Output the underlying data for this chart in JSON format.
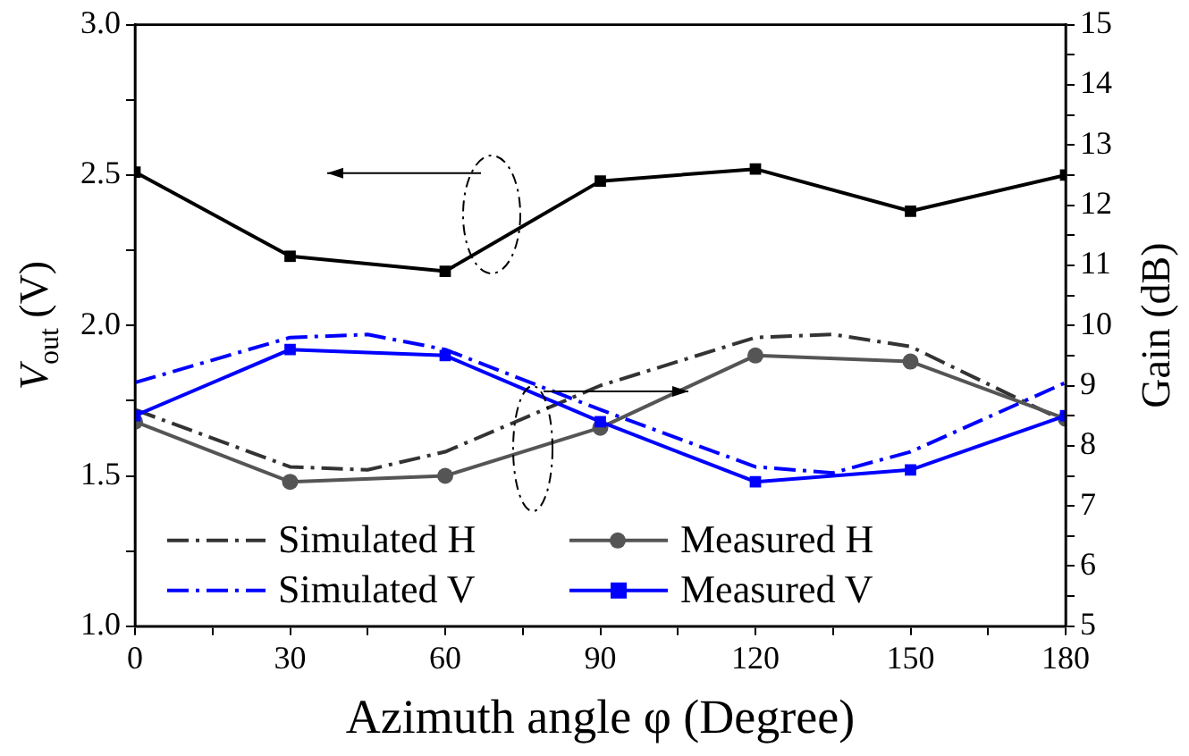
{
  "chart_data": {
    "type": "line",
    "xlabel": "Azimuth angle φ (Degree)",
    "ylabel": "V$_{out}$ (V)",
    "y2label": "Gain (dB)",
    "xlim": [
      0,
      180
    ],
    "xticks": [
      0,
      {
        "value": 15,
        "label": null
      },
      30,
      {
        "value": 45,
        "label": null
      },
      60,
      {
        "value": 75,
        "label": null
      },
      90,
      {
        "value": 105,
        "label": null
      },
      120,
      {
        "value": 135,
        "label": null
      },
      150,
      {
        "value": 165,
        "label": null
      },
      180
    ],
    "ylim": [
      1.0,
      3.0
    ],
    "yticks": [
      {
        "value": 1.0,
        "label": "1.0"
      },
      {
        "value": 1.25,
        "label": null
      },
      {
        "value": 1.5,
        "label": "1.5"
      },
      {
        "value": 1.75,
        "label": null
      },
      {
        "value": 2.0,
        "label": "2.0"
      },
      {
        "value": 2.25,
        "label": null
      },
      {
        "value": 2.5,
        "label": "2.5"
      },
      {
        "value": 2.75,
        "label": null
      },
      {
        "value": 3.0,
        "label": "3.0"
      }
    ],
    "y2lim": [
      5,
      15
    ],
    "y2ticks": [
      5,
      {
        "value": 5.5,
        "label": null
      },
      6,
      {
        "value": 6.5,
        "label": null
      },
      7,
      {
        "value": 7.5,
        "label": null
      },
      8,
      {
        "value": 8.5,
        "label": null
      },
      9,
      {
        "value": 9.5,
        "label": null
      },
      10,
      {
        "value": 10.5,
        "label": null
      },
      11,
      {
        "value": 11.5,
        "label": null
      },
      12,
      {
        "value": 12.5,
        "label": null
      },
      13,
      {
        "value": 13.5,
        "label": null
      },
      14,
      {
        "value": 14.5,
        "label": null
      },
      15
    ],
    "legend": "bottom left",
    "grid": false,
    "series": [
      {
        "name": "Simulated H",
        "color": "#333333",
        "axis": "y2",
        "marker": "none",
        "line_style": "dashed",
        "x": [
          0,
          30,
          45,
          60,
          90,
          120,
          135,
          150,
          180
        ],
        "values": [
          8.6,
          7.65,
          7.6,
          7.9,
          9.0,
          9.8,
          9.85,
          9.65,
          8.4
        ]
      },
      {
        "name": "Measured H",
        "color": "#555555",
        "axis": "y2",
        "marker": "circle",
        "line_style": "solid",
        "x": [
          0,
          30,
          60,
          90,
          120,
          150,
          180
        ],
        "values": [
          8.4,
          7.4,
          7.5,
          8.3,
          9.5,
          9.4,
          8.45
        ]
      },
      {
        "name": "Simulated V",
        "color": "#0000ff",
        "axis": "y2",
        "marker": "none",
        "line_style": "dashed",
        "x": [
          0,
          30,
          45,
          60,
          90,
          120,
          135,
          150,
          180
        ],
        "values": [
          9.05,
          9.8,
          9.85,
          9.6,
          8.6,
          7.65,
          7.55,
          7.9,
          9.05
        ]
      },
      {
        "name": "Measured V",
        "color": "#0000ff",
        "axis": "y2",
        "marker": "square",
        "line_style": "solid",
        "x": [
          0,
          30,
          60,
          90,
          120,
          150,
          180
        ],
        "values": [
          8.5,
          9.6,
          9.5,
          8.4,
          7.4,
          7.6,
          8.5
        ]
      },
      {
        "color": "#000000",
        "axis": "y",
        "marker": "square",
        "line_style": "solid",
        "x": [
          0,
          30,
          60,
          90,
          120,
          150,
          180
        ],
        "values": [
          2.51,
          2.23,
          2.18,
          2.48,
          2.52,
          2.38,
          2.5
        ]
      }
    ]
  }
}
